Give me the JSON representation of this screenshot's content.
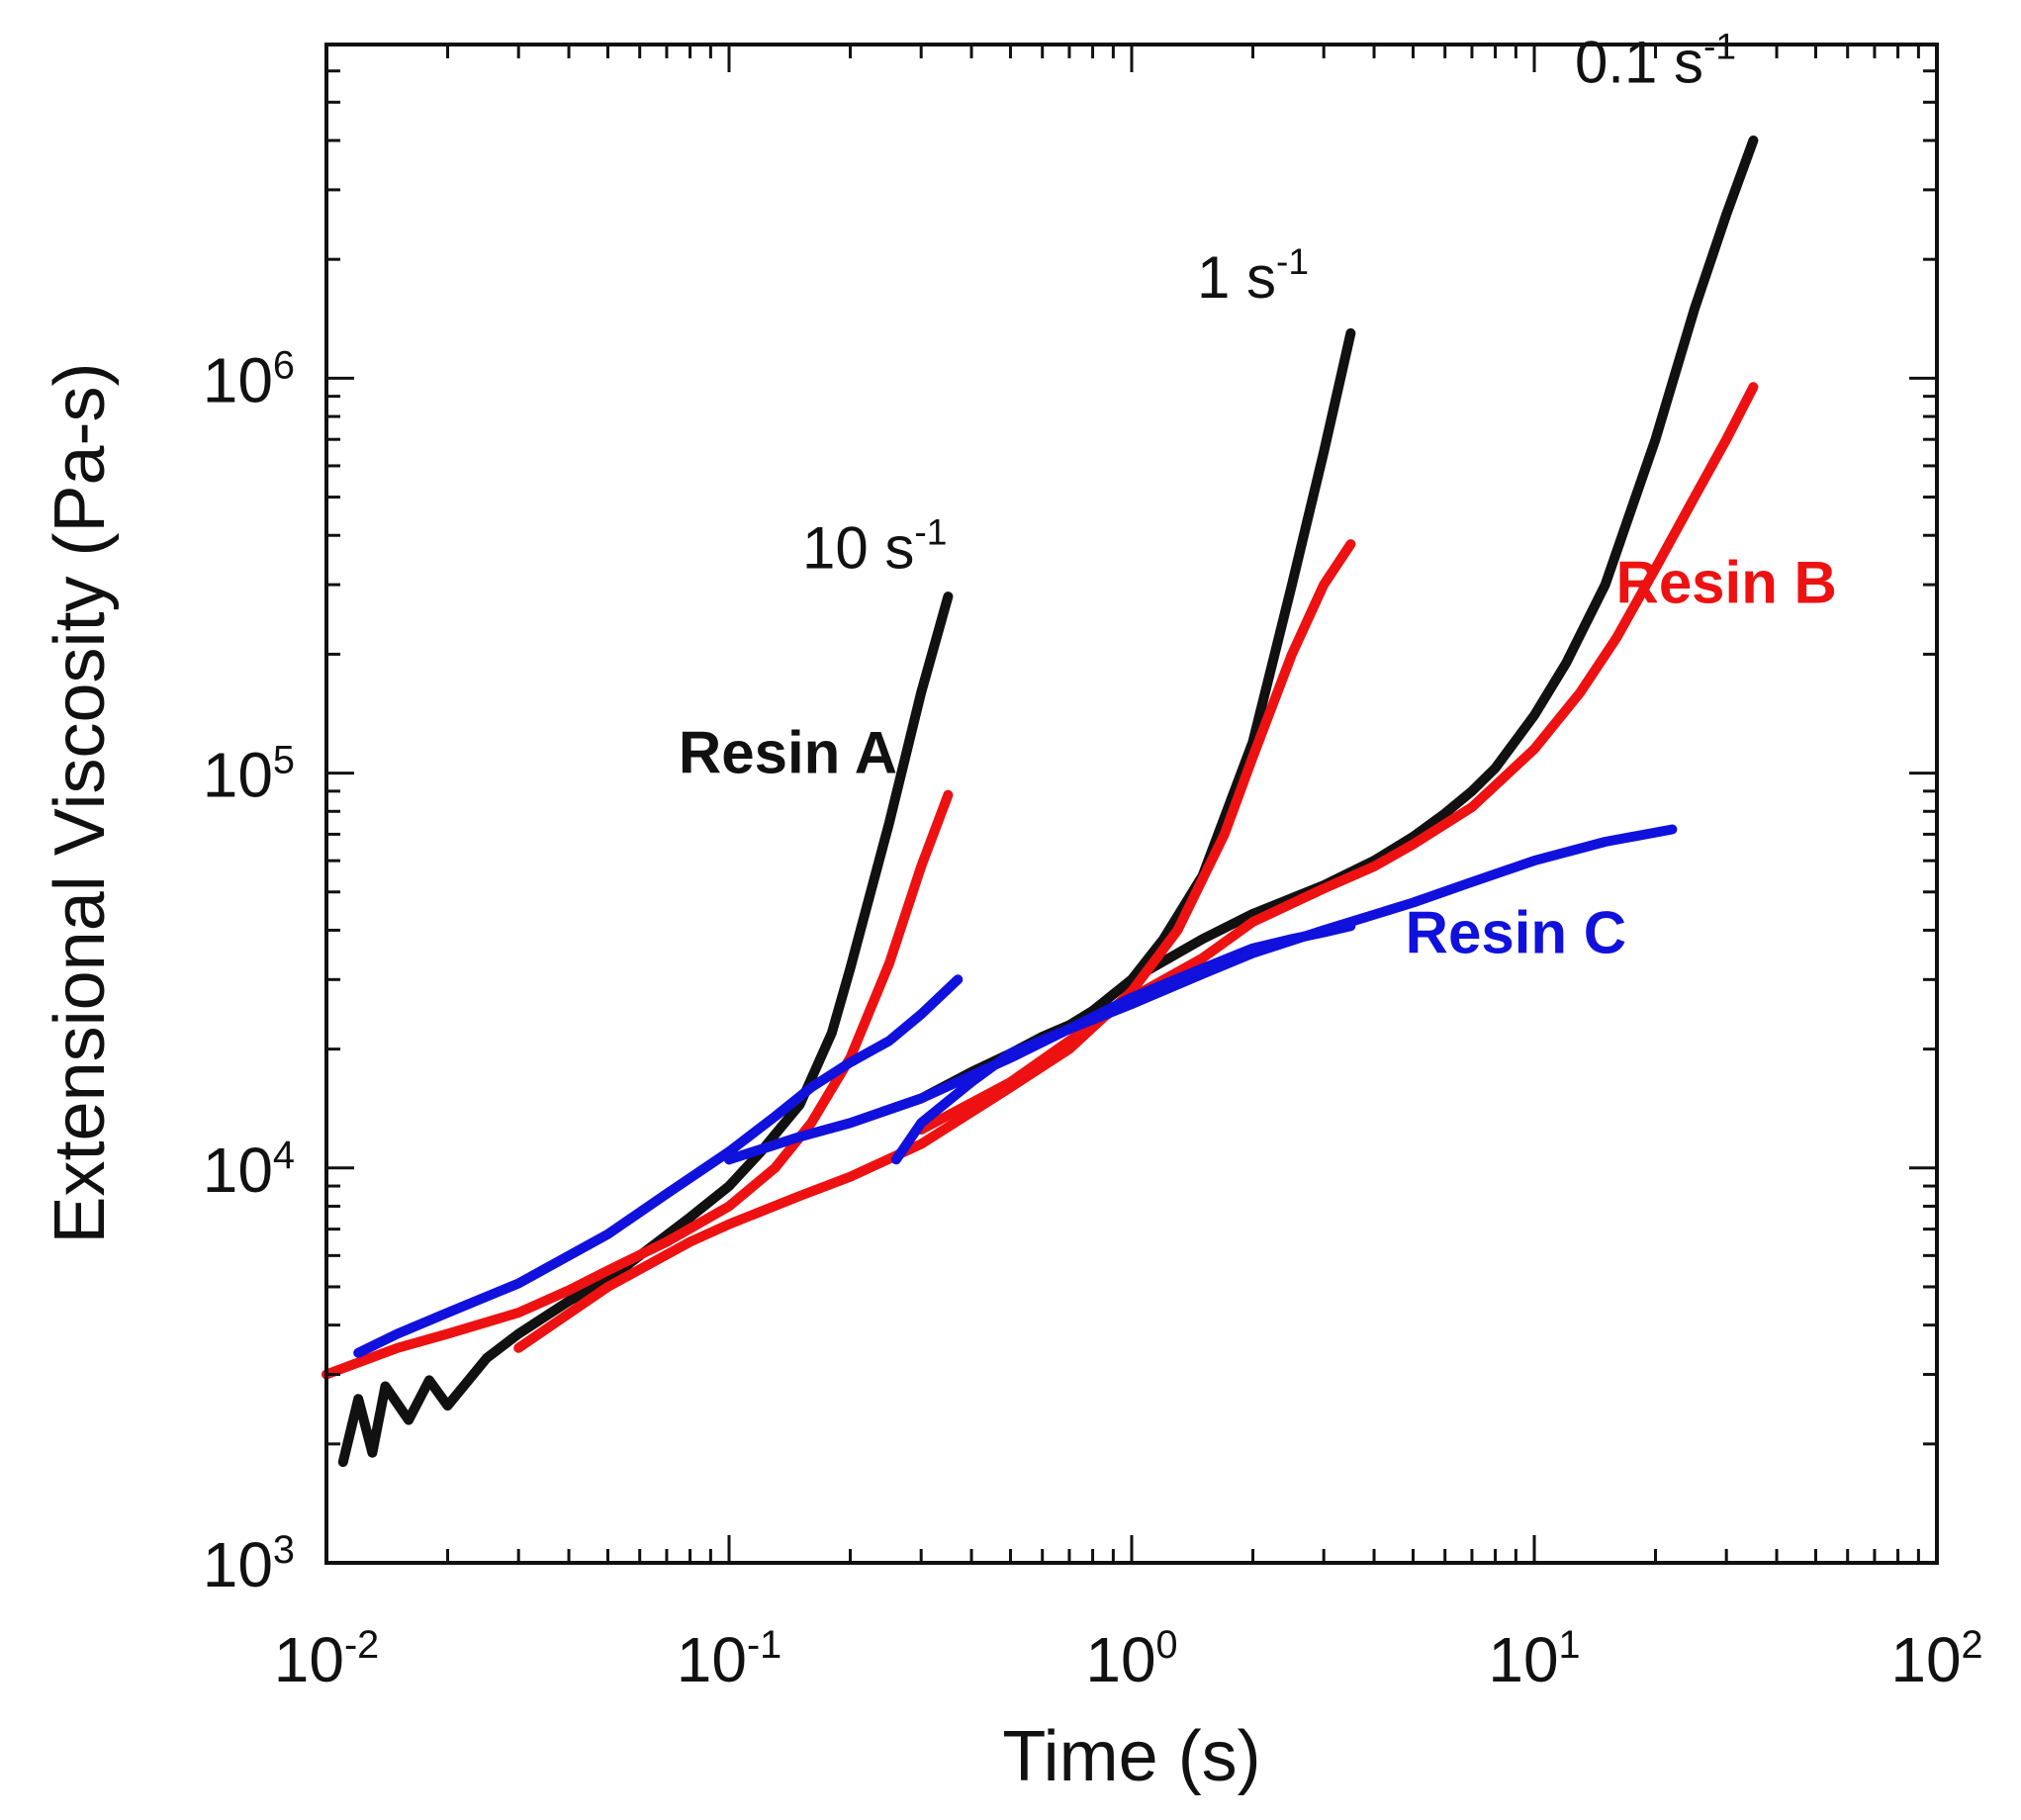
{
  "chart_data": {
    "type": "line",
    "scale": {
      "x": "log",
      "y": "log"
    },
    "xlabel": "Time (s)",
    "ylabel": "Extensional Viscosity (Pa-s)",
    "xlim": [
      0.01,
      100
    ],
    "ylim": [
      1000,
      7000000
    ],
    "x_ticks": [
      {
        "base": "10",
        "exp": "-2"
      },
      {
        "base": "10",
        "exp": "-1"
      },
      {
        "base": "10",
        "exp": "0"
      },
      {
        "base": "10",
        "exp": "1"
      },
      {
        "base": "10",
        "exp": "2"
      }
    ],
    "y_ticks": [
      {
        "base": "10",
        "exp": "3"
      },
      {
        "base": "10",
        "exp": "4"
      },
      {
        "base": "10",
        "exp": "5"
      },
      {
        "base": "10",
        "exp": "6"
      }
    ],
    "rate_labels": [
      {
        "base": "10 s",
        "exp": "-1",
        "x": 0.23,
        "y": 330000
      },
      {
        "base": "1 s",
        "exp": "-1",
        "x": 2.0,
        "y": 1600000
      },
      {
        "base": "0.1 s",
        "exp": "-1",
        "x": 20,
        "y": 5600000
      }
    ],
    "series_labels": [
      {
        "text": "Resin A",
        "color": "#111111",
        "x": 0.14,
        "y": 100000
      },
      {
        "text": "Resin B",
        "color": "#ee1111",
        "x": 30,
        "y": 270000
      },
      {
        "text": "Resin C",
        "color": "#1111dd",
        "x": 9,
        "y": 35000
      }
    ],
    "series": [
      {
        "name": "Resin A",
        "rate": "10 s-1",
        "color": "#111111",
        "x": [
          0.011,
          0.012,
          0.013,
          0.014,
          0.016,
          0.018,
          0.02,
          0.025,
          0.03,
          0.04,
          0.05,
          0.06,
          0.08,
          0.1,
          0.12,
          0.15,
          0.18,
          0.2,
          0.25,
          0.3,
          0.35
        ],
        "y": [
          1800,
          2600,
          1900,
          2800,
          2300,
          2900,
          2500,
          3300,
          3800,
          4600,
          5200,
          6000,
          7500,
          9000,
          11000,
          14500,
          22000,
          32000,
          75000,
          160000,
          280000
        ]
      },
      {
        "name": "Resin A",
        "rate": "1 s-1",
        "color": "#111111",
        "x": [
          0.1,
          0.15,
          0.2,
          0.3,
          0.4,
          0.5,
          0.6,
          0.7,
          0.8,
          1.0,
          1.2,
          1.5,
          2.0,
          2.5,
          3.0,
          3.5
        ],
        "y": [
          10500,
          12000,
          13000,
          15000,
          17500,
          19500,
          21500,
          23000,
          25000,
          30000,
          38000,
          55000,
          120000,
          300000,
          650000,
          1300000
        ]
      },
      {
        "name": "Resin A",
        "rate": "0.1 s-1",
        "color": "#111111",
        "x": [
          1,
          1.5,
          2,
          3,
          4,
          5,
          6,
          7,
          8,
          10,
          12,
          15,
          20,
          25,
          30,
          35
        ],
        "y": [
          30000,
          38000,
          44000,
          52000,
          60000,
          69000,
          79000,
          90000,
          103000,
          140000,
          190000,
          300000,
          700000,
          1500000,
          2600000,
          4000000
        ]
      },
      {
        "name": "Resin B",
        "rate": "10 s-1",
        "color": "#ee1111",
        "x": [
          0.01,
          0.015,
          0.02,
          0.03,
          0.04,
          0.05,
          0.07,
          0.1,
          0.13,
          0.16,
          0.2,
          0.25,
          0.3,
          0.35
        ],
        "y": [
          3000,
          3500,
          3800,
          4300,
          4900,
          5500,
          6500,
          8000,
          10000,
          13000,
          19000,
          33000,
          58000,
          88000
        ]
      },
      {
        "name": "Resin B",
        "rate": "1 s-1",
        "color": "#ee1111",
        "x": [
          0.03,
          0.05,
          0.08,
          0.1,
          0.15,
          0.2,
          0.3,
          0.5,
          0.7,
          1.0,
          1.3,
          1.7,
          2.0,
          2.5,
          3.0,
          3.5
        ],
        "y": [
          3500,
          5000,
          6500,
          7200,
          8500,
          9500,
          11500,
          16000,
          20000,
          28000,
          40000,
          70000,
          110000,
          200000,
          300000,
          380000
        ]
      },
      {
        "name": "Resin B",
        "rate": "0.1 s-1",
        "color": "#ee1111",
        "x": [
          0.3,
          0.5,
          0.7,
          1.0,
          1.5,
          2.0,
          3.0,
          4.0,
          5.0,
          7.0,
          10,
          13,
          16,
          20,
          25,
          30,
          35
        ],
        "y": [
          12500,
          16500,
          21000,
          27000,
          34000,
          42000,
          51000,
          58000,
          66000,
          82000,
          115000,
          160000,
          220000,
          330000,
          500000,
          700000,
          950000
        ]
      },
      {
        "name": "Resin C",
        "rate": "10 s-1",
        "color": "#1111dd",
        "x": [
          0.012,
          0.015,
          0.02,
          0.03,
          0.05,
          0.07,
          0.1,
          0.13,
          0.16,
          0.2,
          0.25,
          0.3,
          0.37
        ],
        "y": [
          3400,
          3800,
          4300,
          5100,
          6800,
          8600,
          11000,
          13500,
          16000,
          18500,
          21000,
          24500,
          30000
        ]
      },
      {
        "name": "Resin C",
        "rate": "1 s-1",
        "color": "#1111dd",
        "x": [
          0.1,
          0.15,
          0.2,
          0.3,
          0.5,
          0.7,
          1.0,
          1.5,
          2.0,
          2.5,
          3.0,
          3.5
        ],
        "y": [
          10500,
          12000,
          13000,
          15000,
          19000,
          22500,
          27000,
          32000,
          36000,
          38000,
          39500,
          41000
        ]
      },
      {
        "name": "Resin C",
        "rate": "0.1 s-1",
        "color": "#1111dd",
        "x": [
          0.26,
          0.3,
          0.4,
          0.5,
          0.7,
          1.0,
          1.5,
          2.0,
          3.0,
          5.0,
          7.0,
          10,
          15,
          22
        ],
        "y": [
          10500,
          13000,
          16500,
          19500,
          22500,
          26000,
          31000,
          35000,
          40000,
          47000,
          53000,
          60000,
          67000,
          72000
        ]
      }
    ]
  }
}
